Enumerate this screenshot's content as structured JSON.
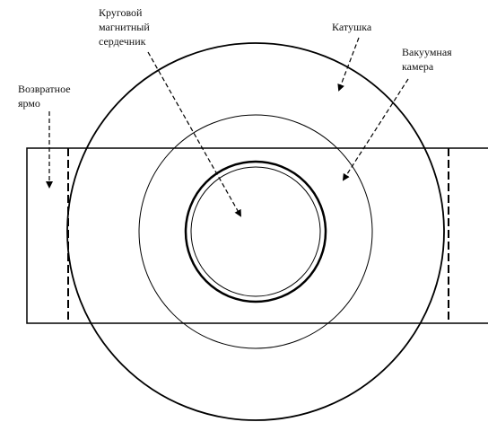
{
  "labels": {
    "core": [
      "Круговой",
      "магнитный",
      "сердечник"
    ],
    "coil": [
      "Катушка"
    ],
    "chamber": [
      "Вакуумная",
      "камера"
    ],
    "yoke": [
      "Возвратное",
      "ярмо"
    ]
  }
}
